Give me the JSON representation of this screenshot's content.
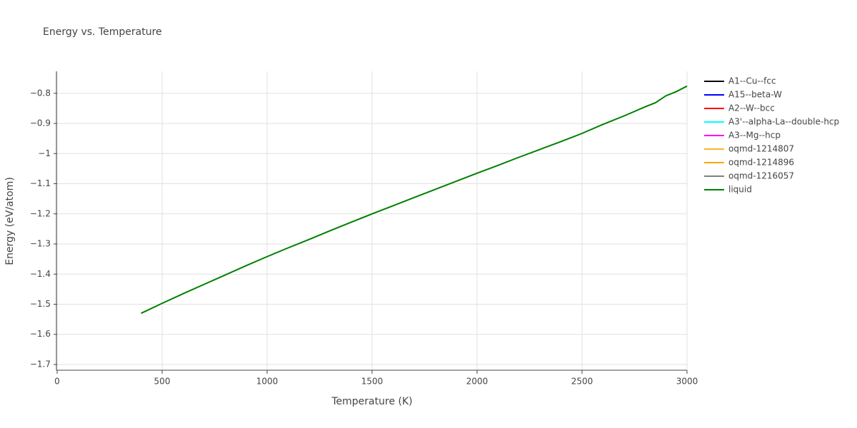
{
  "chart_data": {
    "type": "line",
    "title": "Energy vs. Temperature",
    "x_label": "Temperature (K)",
    "y_label": "Energy (eV/atom)",
    "xlim": [
      0,
      3000
    ],
    "xticks": [
      0,
      500,
      1000,
      1500,
      2000,
      2500,
      3000
    ],
    "ylim": [
      -1.719,
      -0.727
    ],
    "yticks": [
      {
        "value": -1.7,
        "label": "−1.7"
      },
      {
        "value": -1.6,
        "label": "−1.6"
      },
      {
        "value": -1.5,
        "label": "−1.5"
      },
      {
        "value": -1.4,
        "label": "−1.4"
      },
      {
        "value": -1.3,
        "label": "−1.3"
      },
      {
        "value": -1.2,
        "label": "−1.2"
      },
      {
        "value": -1.1,
        "label": "−1.1"
      },
      {
        "value": -1,
        "label": "−1"
      },
      {
        "value": -0.9,
        "label": "−0.9"
      },
      {
        "value": -0.8,
        "label": "−0.8"
      }
    ],
    "grid": true,
    "series": [
      {
        "name": "A1--Cu--fcc",
        "color": "#000000",
        "x": [],
        "values": []
      },
      {
        "name": "A15--beta-W",
        "color": "#0000ff",
        "x": [],
        "values": []
      },
      {
        "name": "A2--W--bcc",
        "color": "#ff0000",
        "x": [],
        "values": []
      },
      {
        "name": "A3'--alpha-La--double-hcp",
        "color": "#00ffff",
        "x": [],
        "values": []
      },
      {
        "name": "A3--Mg--hcp",
        "color": "#ff00ff",
        "x": [],
        "values": []
      },
      {
        "name": "oqmd-1214807",
        "color": "#f5b921",
        "x": [],
        "values": []
      },
      {
        "name": "oqmd-1214896",
        "color": "#ffa500",
        "x": [],
        "values": []
      },
      {
        "name": "oqmd-1216057",
        "color": "#808080",
        "x": [],
        "values": []
      },
      {
        "name": "liquid",
        "color": "#008000",
        "x": [
          400,
          500,
          600,
          700,
          800,
          900,
          1000,
          1100,
          1200,
          1300,
          1400,
          1500,
          1600,
          1700,
          1800,
          1900,
          2000,
          2100,
          2200,
          2300,
          2400,
          2500,
          2600,
          2700,
          2800,
          2850,
          2900,
          2950,
          3000
        ],
        "values": [
          -1.53,
          -1.497,
          -1.465,
          -1.434,
          -1.403,
          -1.372,
          -1.342,
          -1.313,
          -1.285,
          -1.256,
          -1.228,
          -1.2,
          -1.173,
          -1.146,
          -1.119,
          -1.092,
          -1.065,
          -1.039,
          -1.012,
          -0.986,
          -0.96,
          -0.933,
          -0.903,
          -0.875,
          -0.845,
          -0.831,
          -0.808,
          -0.794,
          -0.776
        ]
      }
    ]
  }
}
